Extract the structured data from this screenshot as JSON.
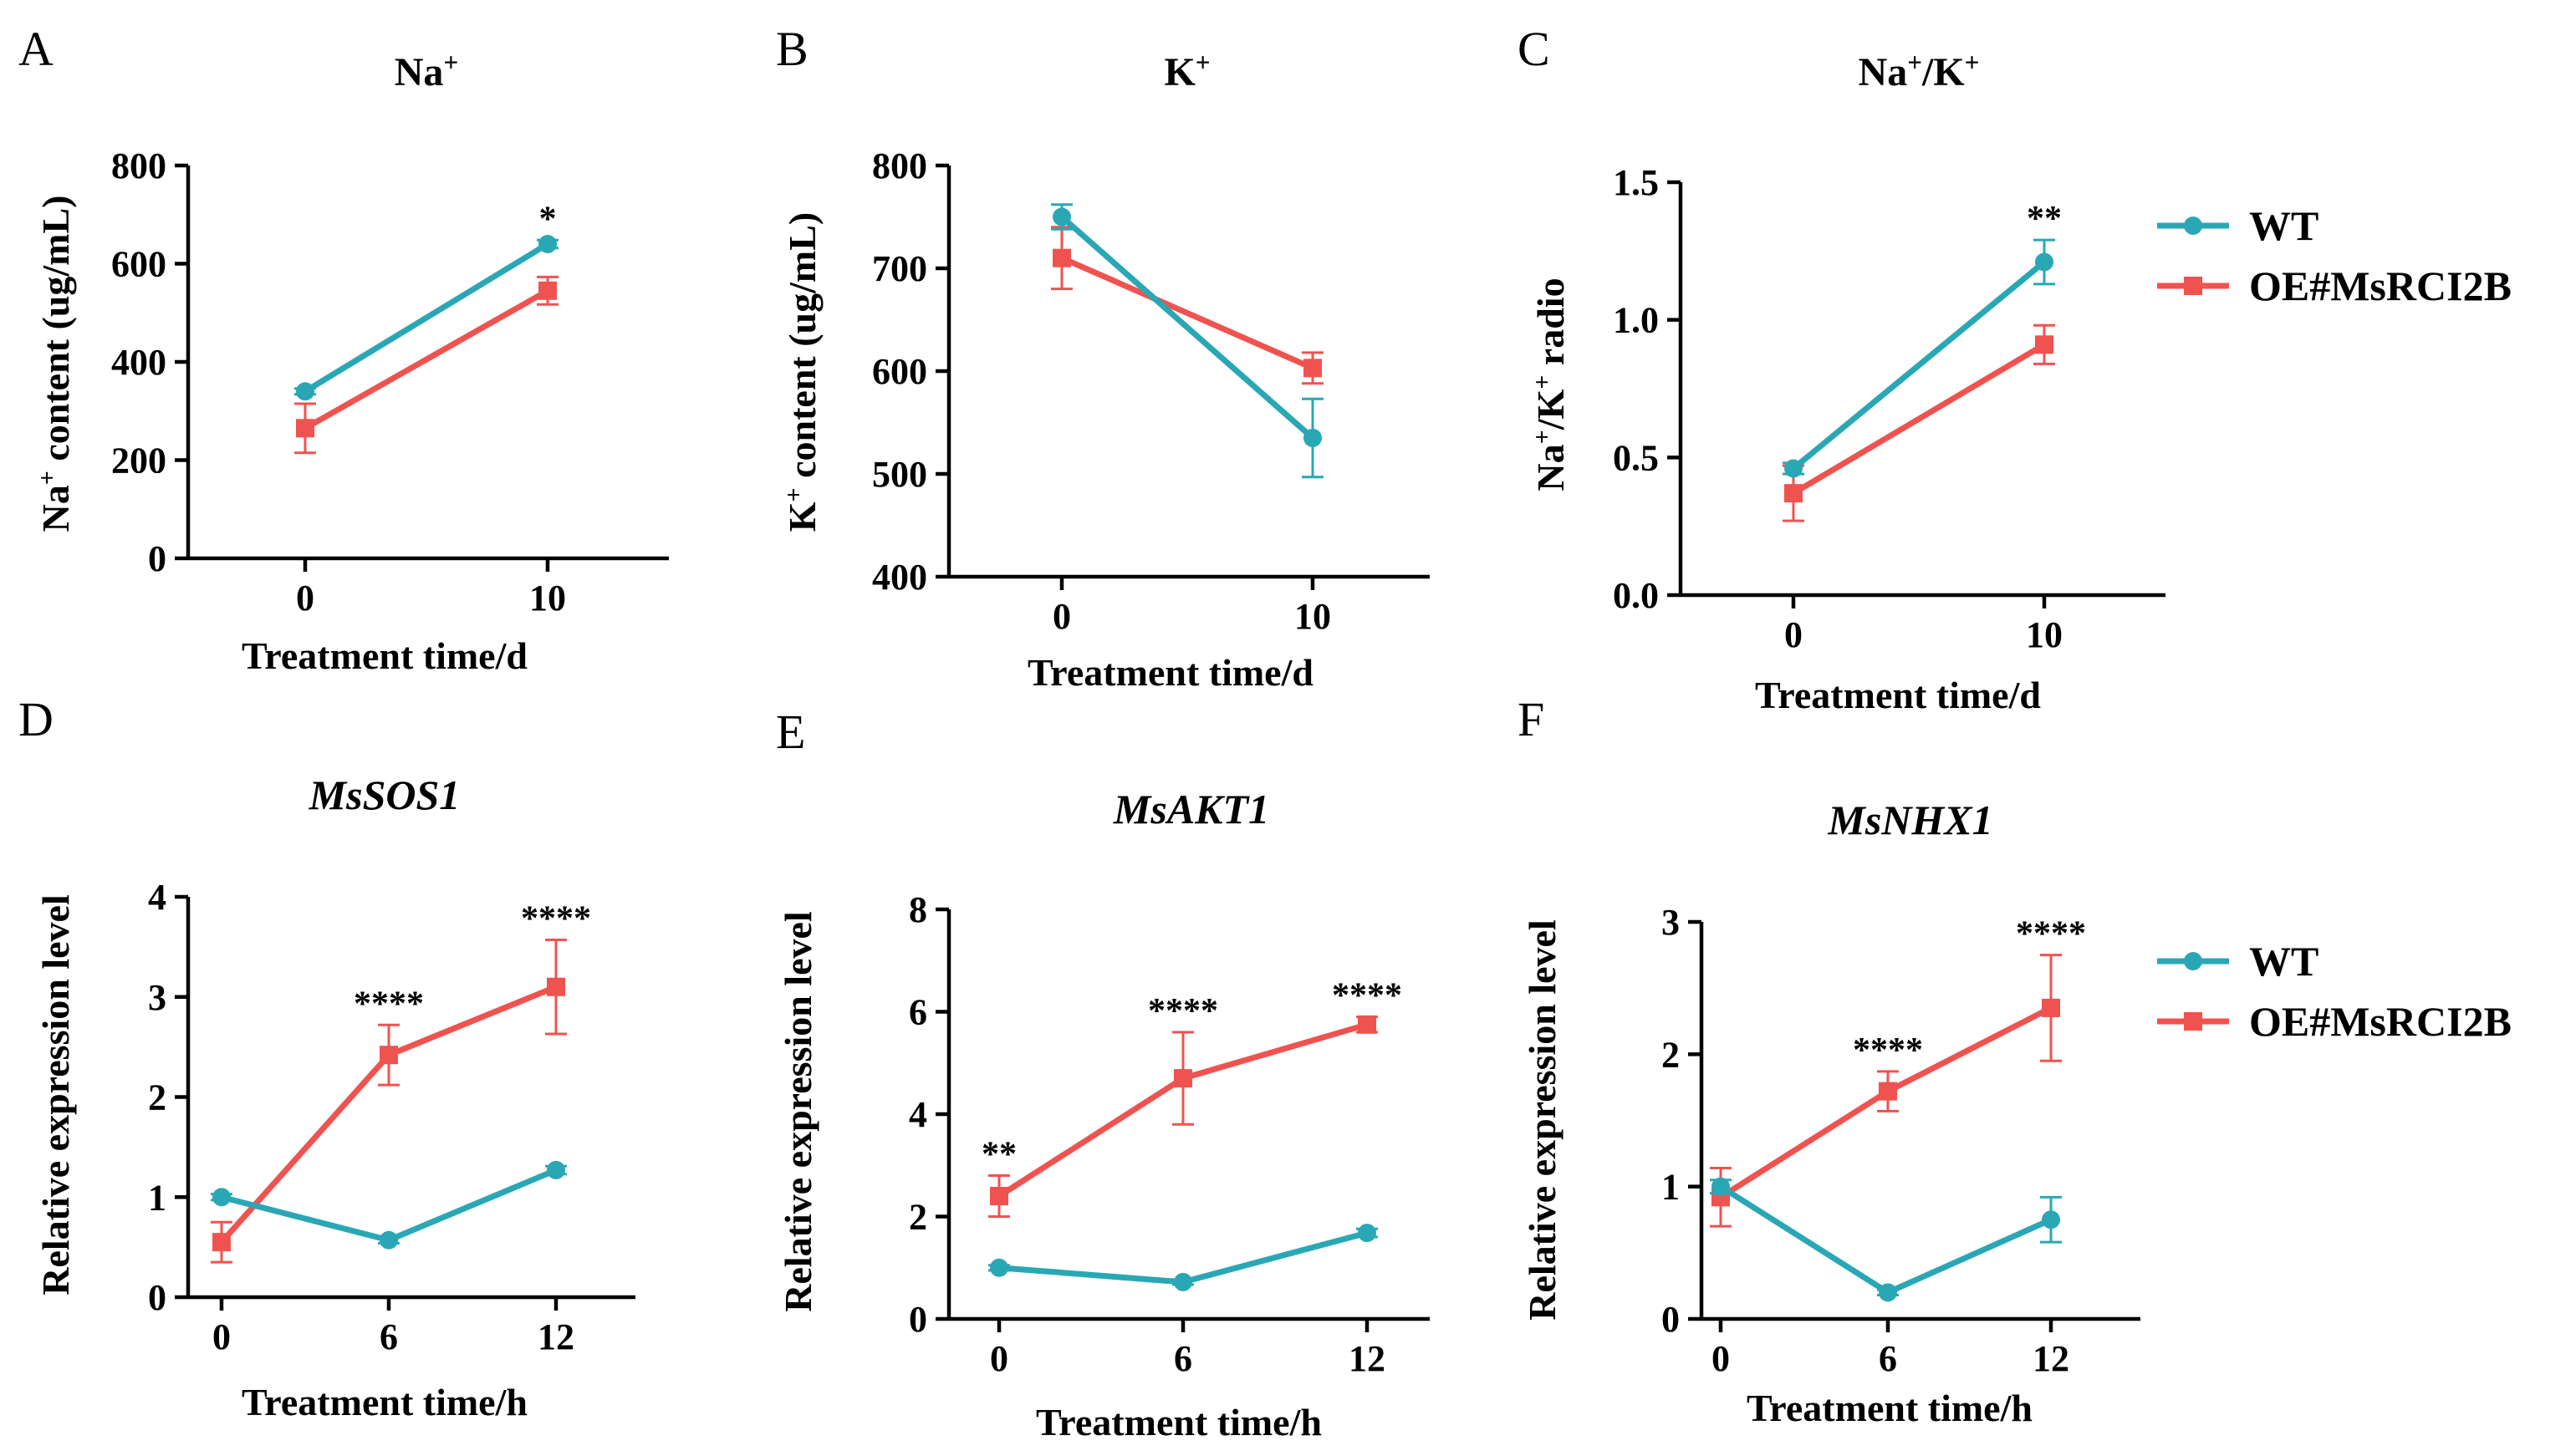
{
  "colors": {
    "wt": "#2aa7b5",
    "oe": "#ef5350"
  },
  "legends": [
    {
      "series": [
        {
          "name": "WT",
          "color": "#2aa7b5",
          "marker": "circle"
        },
        {
          "name": "OE#MsRCI2B",
          "color": "#ef5350",
          "marker": "square"
        }
      ]
    },
    {
      "series": [
        {
          "name": "WT",
          "color": "#2aa7b5",
          "marker": "circle"
        },
        {
          "name": "OE#MsRCI2B",
          "color": "#ef5350",
          "marker": "square"
        }
      ]
    }
  ],
  "chart_data": [
    {
      "panel": "A",
      "type": "line",
      "title": "Na",
      "title_sup": "+",
      "title_italic": false,
      "xlabel": "Treatment time/d",
      "ylabel_parts": [
        [
          "Na",
          ""
        ],
        [
          "+",
          "sup"
        ],
        [
          " content (ug/mL)",
          ""
        ]
      ],
      "categories": [
        "0",
        "10"
      ],
      "ylim": [
        0,
        800
      ],
      "yticks": [
        0,
        200,
        400,
        600,
        800
      ],
      "series": [
        {
          "name": "WT",
          "values": [
            340,
            640
          ],
          "errors": [
            6,
            8
          ]
        },
        {
          "name": "OE#MsRCI2B",
          "values": [
            265,
            545
          ],
          "errors": [
            50,
            28
          ]
        }
      ],
      "significance": [
        {
          "category": "10",
          "label": "*"
        }
      ]
    },
    {
      "panel": "B",
      "type": "line",
      "title": "K",
      "title_sup": "+",
      "title_italic": false,
      "xlabel": "Treatment time/d",
      "ylabel_parts": [
        [
          "K",
          ""
        ],
        [
          "+",
          "sup"
        ],
        [
          " content (ug/mL)",
          ""
        ]
      ],
      "categories": [
        "0",
        "10"
      ],
      "ylim": [
        400,
        800
      ],
      "yticks": [
        400,
        500,
        600,
        700,
        800
      ],
      "series": [
        {
          "name": "WT",
          "values": [
            750,
            535
          ],
          "errors": [
            12,
            38
          ]
        },
        {
          "name": "OE#MsRCI2B",
          "values": [
            710,
            603
          ],
          "errors": [
            30,
            15
          ]
        }
      ],
      "significance": []
    },
    {
      "panel": "C",
      "type": "line",
      "title": "Na+/K+",
      "title_sup": "",
      "title_italic": false,
      "title_parts": [
        [
          "Na",
          ""
        ],
        [
          "+",
          "sup"
        ],
        [
          "/K",
          ""
        ],
        [
          "+",
          "sup"
        ]
      ],
      "xlabel": "Treatment time/d",
      "ylabel_parts": [
        [
          "Na",
          ""
        ],
        [
          "+",
          "sup"
        ],
        [
          "/K",
          ""
        ],
        [
          "+",
          "sup"
        ],
        [
          " radio",
          ""
        ]
      ],
      "categories": [
        "0",
        "10"
      ],
      "ylim": [
        0,
        1.5
      ],
      "yticks": [
        "0.0",
        "0.5",
        "1.0",
        "1.5"
      ],
      "series": [
        {
          "name": "WT",
          "values": [
            0.46,
            1.21
          ],
          "errors": [
            0.02,
            0.08
          ]
        },
        {
          "name": "OE#MsRCI2B",
          "values": [
            0.37,
            0.91
          ],
          "errors": [
            0.1,
            0.07
          ]
        }
      ],
      "significance": [
        {
          "category": "10",
          "label": "**"
        }
      ]
    },
    {
      "panel": "D",
      "type": "line",
      "title": "MsSOS1",
      "title_sup": "",
      "title_italic": true,
      "xlabel": "Treatment time/h",
      "ylabel_parts": [
        [
          "Relative expression level",
          ""
        ]
      ],
      "categories": [
        "0",
        "6",
        "12"
      ],
      "ylim": [
        0,
        4
      ],
      "yticks": [
        0,
        1,
        2,
        3,
        4
      ],
      "series": [
        {
          "name": "WT",
          "values": [
            1.0,
            0.57,
            1.27
          ],
          "errors": [
            0.03,
            0.03,
            0.04
          ]
        },
        {
          "name": "OE#MsRCI2B",
          "values": [
            0.55,
            2.42,
            3.1
          ],
          "errors": [
            0.2,
            0.3,
            0.47
          ]
        }
      ],
      "significance": [
        {
          "category": "6",
          "label": "****"
        },
        {
          "category": "12",
          "label": "****"
        }
      ]
    },
    {
      "panel": "E",
      "type": "line",
      "title": "MsAKT1",
      "title_sup": "",
      "title_italic": true,
      "xlabel": "Treatment time/h",
      "ylabel_parts": [
        [
          "Relative expression level",
          ""
        ]
      ],
      "categories": [
        "0",
        "6",
        "12"
      ],
      "ylim": [
        0,
        8
      ],
      "yticks": [
        0,
        2,
        4,
        6,
        8
      ],
      "series": [
        {
          "name": "WT",
          "values": [
            1.0,
            0.72,
            1.68
          ],
          "errors": [
            0.05,
            0.05,
            0.08
          ]
        },
        {
          "name": "OE#MsRCI2B",
          "values": [
            2.4,
            4.7,
            5.75
          ],
          "errors": [
            0.4,
            0.9,
            0.15
          ]
        }
      ],
      "significance": [
        {
          "category": "0",
          "label": "**"
        },
        {
          "category": "6",
          "label": "****"
        },
        {
          "category": "12",
          "label": "****"
        }
      ]
    },
    {
      "panel": "F",
      "type": "line",
      "title": "MsNHX1",
      "title_sup": "",
      "title_italic": true,
      "xlabel": "Treatment time/h",
      "ylabel_parts": [
        [
          "Relative expression level",
          ""
        ]
      ],
      "categories": [
        "0",
        "6",
        "12"
      ],
      "ylim": [
        0,
        3
      ],
      "yticks": [
        0,
        1,
        2,
        3
      ],
      "series": [
        {
          "name": "WT",
          "values": [
            1.0,
            0.2,
            0.75
          ],
          "errors": [
            0.05,
            0.02,
            0.17
          ]
        },
        {
          "name": "OE#MsRCI2B",
          "values": [
            0.92,
            1.72,
            2.35
          ],
          "errors": [
            0.22,
            0.15,
            0.4
          ]
        }
      ],
      "significance": [
        {
          "category": "6",
          "label": "****"
        },
        {
          "category": "12",
          "label": "****"
        }
      ]
    }
  ]
}
